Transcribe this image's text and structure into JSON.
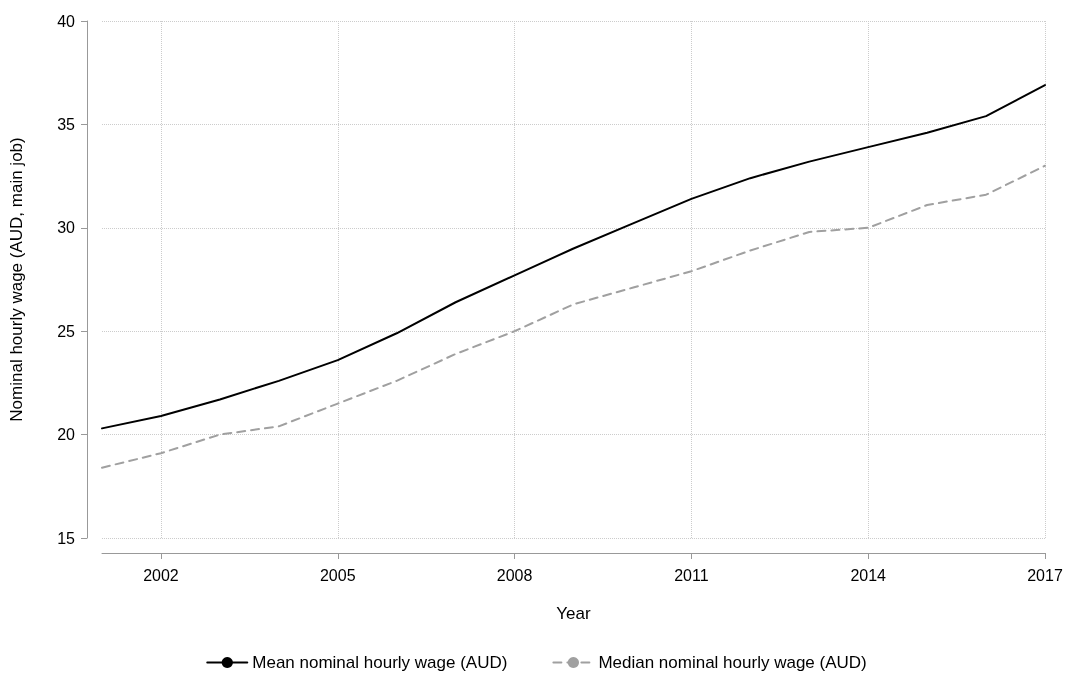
{
  "chart_data": {
    "type": "line",
    "xlabel": "Year",
    "ylabel": "Nominal hourly wage (AUD, main job)",
    "x": [
      2001,
      2002,
      2003,
      2004,
      2005,
      2006,
      2007,
      2008,
      2009,
      2010,
      2011,
      2012,
      2013,
      2014,
      2015,
      2016,
      2017
    ],
    "series": [
      {
        "name": "Mean nominal hourly wage (AUD)",
        "color": "#000000",
        "line_style": "solid",
        "values": [
          20.3,
          20.9,
          21.7,
          22.6,
          23.6,
          24.9,
          26.4,
          27.7,
          29.0,
          30.2,
          31.4,
          32.4,
          33.2,
          33.9,
          34.6,
          35.4,
          36.9
        ]
      },
      {
        "name": "Median nominal hourly wage (AUD)",
        "color": "#a0a0a0",
        "line_style": "dashed",
        "values": [
          18.4,
          19.1,
          20.0,
          20.4,
          21.5,
          22.6,
          23.9,
          25.0,
          26.3,
          27.1,
          27.9,
          28.9,
          29.8,
          30.0,
          31.1,
          31.6,
          33.0
        ]
      }
    ],
    "xlim": [
      2001,
      2017
    ],
    "xticks": [
      2002,
      2005,
      2008,
      2011,
      2014,
      2017
    ],
    "ylim": [
      15,
      40
    ],
    "yticks": [
      15,
      20,
      25,
      30,
      35,
      40
    ],
    "grid": true,
    "legend": "bottom",
    "marker": "none"
  }
}
